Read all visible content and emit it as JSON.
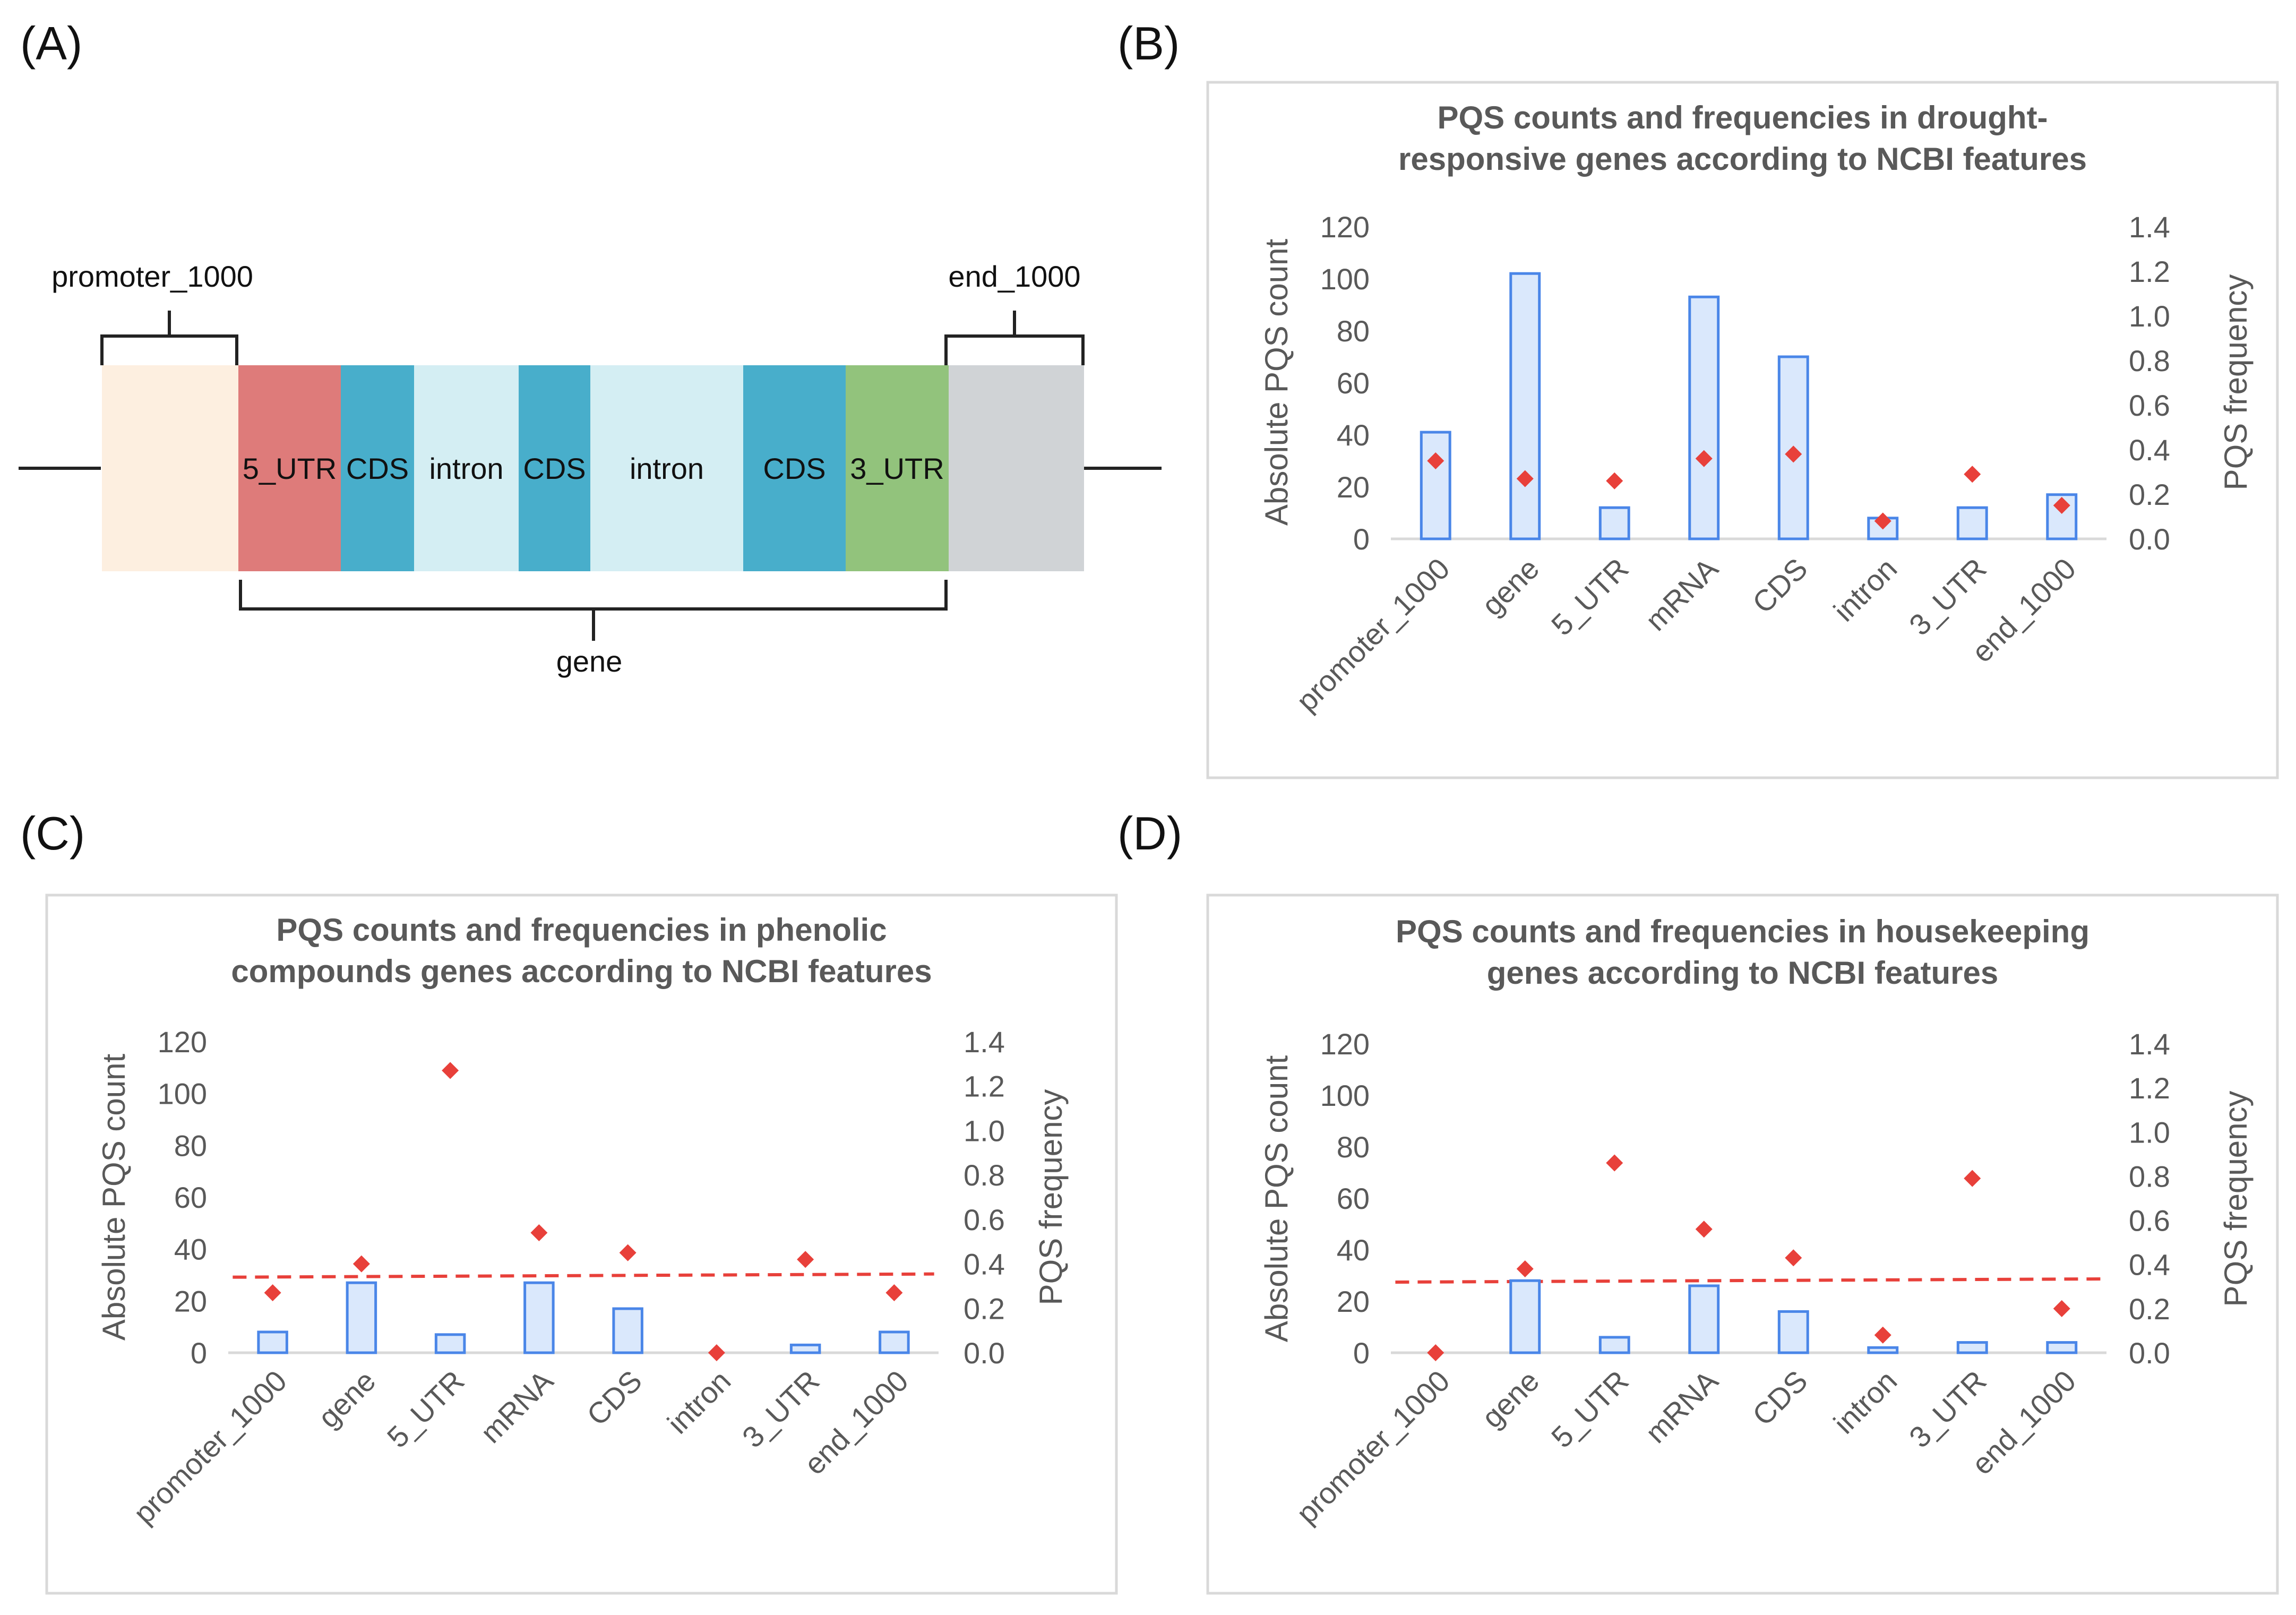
{
  "panel_labels": [
    "(A)",
    "(B)",
    "(C)",
    "(D)"
  ],
  "diagram": {
    "segments": [
      {
        "label": "",
        "color": "#fdefe0"
      },
      {
        "label": "5_UTR",
        "color": "#de7b7a"
      },
      {
        "label": "CDS",
        "color": "#48aecb"
      },
      {
        "label": "intron",
        "color": "#d4eef3"
      },
      {
        "label": "CDS",
        "color": "#48aecb"
      },
      {
        "label": "intron",
        "color": "#d4eef3"
      },
      {
        "label": "CDS",
        "color": "#48aecb"
      },
      {
        "label": "3_UTR",
        "color": "#92c37c"
      },
      {
        "label": "",
        "color": "#d0d3d6"
      }
    ],
    "promoter_label": "promoter_1000",
    "end_label": "end_1000",
    "gene_label": "gene"
  },
  "chart_data": [
    {
      "type": "bar",
      "panel": "(B)",
      "title": [
        "PQS counts and frequencies in drought-",
        "responsive genes according to NCBI features"
      ],
      "categories": [
        "promoter_1000",
        "gene",
        "5_UTR",
        "mRNA",
        "CDS",
        "intron",
        "3_UTR",
        "end_1000"
      ],
      "series": [
        {
          "axis": "left",
          "kind": "bar",
          "values": [
            41,
            102,
            12,
            93,
            70,
            8,
            12,
            17
          ]
        },
        {
          "axis": "right",
          "kind": "marker",
          "values": [
            0.35,
            0.27,
            0.26,
            0.36,
            0.38,
            0.08,
            0.29,
            0.15
          ]
        }
      ],
      "ylabel": "Absolute PQS count",
      "y2label": "PQS frequency",
      "ylim": [
        0,
        120
      ],
      "y2lim": [
        0,
        1.4
      ],
      "yticks": [
        "0",
        "20",
        "40",
        "60",
        "80",
        "100",
        "120"
      ],
      "y2ticks": [
        "0.0",
        "0.2",
        "0.4",
        "0.6",
        "0.8",
        "1.0",
        "1.2",
        "1.4"
      ],
      "threshold": null,
      "bar_fill": "#dae8fc",
      "bar_stroke": "#4a86e8",
      "marker_color": "#e8403a"
    },
    {
      "type": "bar",
      "panel": "(C)",
      "title": [
        "PQS counts and frequencies in phenolic",
        "compounds genes according to NCBI features"
      ],
      "categories": [
        "promoter_1000",
        "gene",
        "5_UTR",
        "mRNA",
        "CDS",
        "intron",
        "3_UTR",
        "end_1000"
      ],
      "series": [
        {
          "axis": "left",
          "kind": "bar",
          "values": [
            8,
            27,
            7,
            27,
            17,
            0,
            3,
            8
          ]
        },
        {
          "axis": "right",
          "kind": "marker",
          "values": [
            0.27,
            0.4,
            1.27,
            0.54,
            0.45,
            0.0,
            0.42,
            0.27
          ]
        }
      ],
      "ylabel": "Absolute PQS count",
      "y2label": "PQS frequency",
      "ylim": [
        0,
        120
      ],
      "y2lim": [
        0,
        1.4
      ],
      "yticks": [
        "0",
        "20",
        "40",
        "60",
        "80",
        "100",
        "120"
      ],
      "y2ticks": [
        "0.0",
        "0.2",
        "0.4",
        "0.6",
        "0.8",
        "1.0",
        "1.2",
        "1.4"
      ],
      "threshold": 0.34,
      "bar_fill": "#dae8fc",
      "bar_stroke": "#4a86e8",
      "marker_color": "#e8403a"
    },
    {
      "type": "bar",
      "panel": "(D)",
      "title": [
        "PQS counts and frequencies in housekeeping",
        "genes according to NCBI features"
      ],
      "categories": [
        "promoter_1000",
        "gene",
        "5_UTR",
        "mRNA",
        "CDS",
        "intron",
        "3_UTR",
        "end_1000"
      ],
      "series": [
        {
          "axis": "left",
          "kind": "bar",
          "values": [
            0,
            28,
            6,
            26,
            16,
            2,
            4,
            4
          ]
        },
        {
          "axis": "right",
          "kind": "marker",
          "values": [
            0.0,
            0.38,
            0.86,
            0.56,
            0.43,
            0.08,
            0.79,
            0.2
          ]
        }
      ],
      "ylabel": "Absolute PQS count",
      "y2label": "PQS frequency",
      "ylim": [
        0,
        120
      ],
      "y2lim": [
        0,
        1.4
      ],
      "yticks": [
        "0",
        "20",
        "40",
        "60",
        "80",
        "100",
        "120"
      ],
      "y2ticks": [
        "0.0",
        "0.2",
        "0.4",
        "0.6",
        "0.8",
        "1.0",
        "1.2",
        "1.4"
      ],
      "threshold": 0.32,
      "bar_fill": "#dae8fc",
      "bar_stroke": "#4a86e8",
      "marker_color": "#e8403a"
    }
  ]
}
